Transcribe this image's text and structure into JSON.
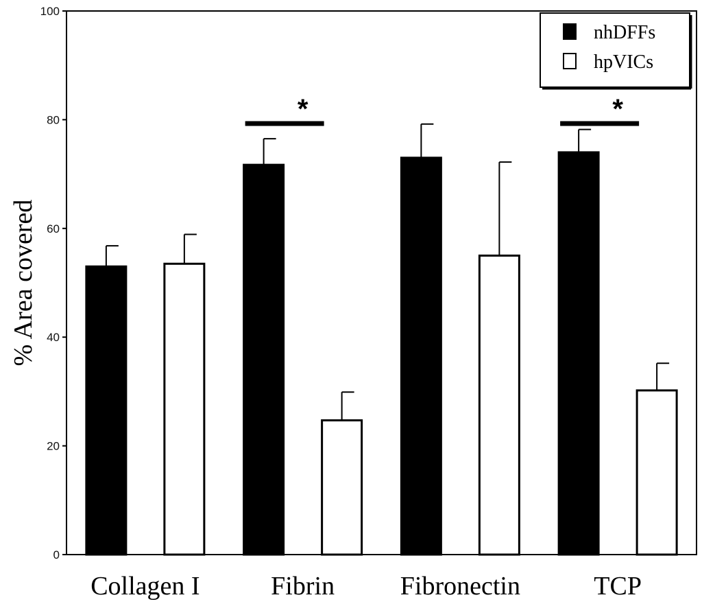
{
  "chart_data": {
    "type": "bar",
    "title": "",
    "xlabel": "",
    "ylabel": "% Area covered",
    "ylim": [
      0,
      100
    ],
    "yticks": [
      0,
      20,
      40,
      60,
      80,
      100
    ],
    "grid": false,
    "legend_position": "top-right",
    "categories": [
      "Collagen I",
      "Fibrin",
      "Fibronectin",
      "TCP"
    ],
    "series": [
      {
        "name": "nhDFFs",
        "fill": "#000000",
        "values": [
          53,
          71.7,
          73,
          74
        ],
        "errors": [
          3.8,
          4.8,
          6.2,
          4.2
        ]
      },
      {
        "name": "hpVICs",
        "fill": "#ffffff",
        "values": [
          53.5,
          24.7,
          55,
          30.2
        ],
        "errors": [
          5.4,
          5.2,
          17.2,
          5.0
        ]
      }
    ],
    "significance": [
      {
        "category": "Fibrin",
        "label": "*",
        "y": 79.3
      },
      {
        "category": "TCP",
        "label": "*",
        "y": 79.3
      }
    ]
  }
}
